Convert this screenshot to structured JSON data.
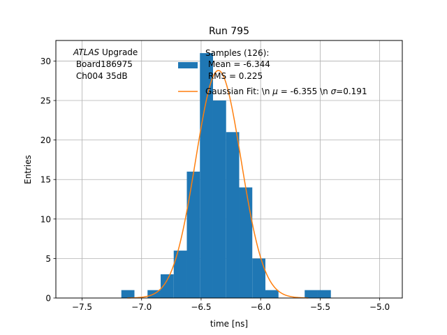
{
  "chart_data": {
    "type": "bar",
    "title": "Run 795",
    "xlabel": "time [ns]",
    "ylabel": "Entries",
    "xlim": [
      -7.72,
      -4.81
    ],
    "ylim": [
      0,
      32.6
    ],
    "grid": true,
    "x_ticks": [
      -7.5,
      -7.0,
      -6.5,
      -6.0,
      -5.5,
      -5.0
    ],
    "x_tick_labels": [
      "−7.5",
      "−7.0",
      "−6.5",
      "−6.0",
      "−5.5",
      "−5.0"
    ],
    "y_ticks": [
      0,
      5,
      10,
      15,
      20,
      25,
      30
    ],
    "y_tick_labels": [
      "0",
      "5",
      "10",
      "15",
      "20",
      "25",
      "30"
    ],
    "annotation": {
      "line1_italic": "ATLAS",
      "line1_rest": " Upgrade",
      "line2": " Board186975",
      "line3": " Ch004 35dB"
    },
    "legend": {
      "placement": "top-right",
      "hist_label_lines": [
        "Samples (126):",
        " Mean = -6.344",
        " RMS = 0.225"
      ],
      "fit_label_parts": [
        "Gaussian Fit: \\n ",
        "μ",
        " = -6.355 \\n ",
        "σ",
        "=0.191"
      ]
    },
    "series": [
      {
        "type": "histogram",
        "color": "#1f77b4",
        "bins": [
          {
            "x0": -7.17,
            "x1": -7.06,
            "count": 1
          },
          {
            "x0": -7.06,
            "x1": -6.95,
            "count": 0
          },
          {
            "x0": -6.95,
            "x1": -6.84,
            "count": 1
          },
          {
            "x0": -6.84,
            "x1": -6.73,
            "count": 3
          },
          {
            "x0": -6.73,
            "x1": -6.62,
            "count": 6
          },
          {
            "x0": -6.62,
            "x1": -6.51,
            "count": 16
          },
          {
            "x0": -6.51,
            "x1": -6.4,
            "count": 31
          },
          {
            "x0": -6.4,
            "x1": -6.29,
            "count": 25
          },
          {
            "x0": -6.29,
            "x1": -6.18,
            "count": 21
          },
          {
            "x0": -6.18,
            "x1": -6.07,
            "count": 14
          },
          {
            "x0": -6.07,
            "x1": -5.96,
            "count": 5
          },
          {
            "x0": -5.96,
            "x1": -5.85,
            "count": 1
          },
          {
            "x0": -5.85,
            "x1": -5.74,
            "count": 0
          },
          {
            "x0": -5.74,
            "x1": -5.63,
            "count": 0
          },
          {
            "x0": -5.63,
            "x1": -5.52,
            "count": 1
          },
          {
            "x0": -5.52,
            "x1": -5.41,
            "count": 1
          }
        ]
      },
      {
        "type": "gaussian_fit",
        "color": "#ff7f0e",
        "mu": -6.355,
        "sigma": 0.191,
        "amplitude": 28.8,
        "x_range": [
          -7.12,
          -5.6
        ]
      }
    ]
  }
}
